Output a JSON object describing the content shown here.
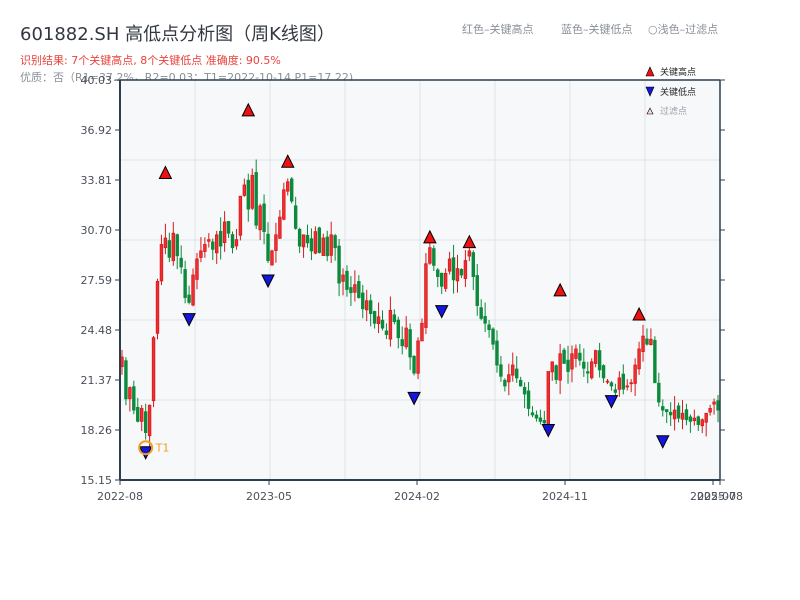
{
  "header": {
    "title": "601882.SH 高低点分析图（周K线图）",
    "result_line": "识别结果: 7个关键高点, 8个关键低点  准确度: 90.5%",
    "quality_line": "优质：否（R1=37.2%，R2=0.03；T1=2022-10-14 P1=17.22)"
  },
  "top_legend": {
    "red": "红色–关键高点",
    "blue": "蓝色–关键低点",
    "light": "○浅色–过滤点"
  },
  "colors": {
    "up": "#d7191c",
    "down": "#0a8a3a",
    "high_marker": "#ee1111",
    "low_marker": "#1515dd",
    "t1_marker": "#f0a020",
    "plot_bg": "#f6f8fa",
    "grid": "#dfe3e8",
    "axis": "#2c3e50"
  },
  "chart_data": {
    "type": "candlestick",
    "title": "601882.SH 高低点分析图（周K线图）",
    "xlabel": "",
    "ylabel": "",
    "ylim": [
      15.15,
      40.03
    ],
    "yticks": [
      "40.03",
      "36.92",
      "33.81",
      "30.70",
      "27.59",
      "24.48",
      "21.37",
      "18.26",
      "15.15"
    ],
    "xticks": [
      "2022-08",
      "2023-05",
      "2024-02",
      "2024-11",
      "2025-07",
      "2025-08"
    ],
    "grid": true,
    "legend": {
      "position": "upper right",
      "entries": [
        "关键高点",
        "关键低点",
        "过滤点"
      ]
    },
    "annotations": [
      {
        "label": "T1",
        "date": "2022-10-14",
        "price": 17.22
      }
    ],
    "key_highs": [
      {
        "week": 11,
        "price": 33.9
      },
      {
        "week": 32,
        "price": 37.8
      },
      {
        "week": 42,
        "price": 34.6
      },
      {
        "week": 78,
        "price": 29.9
      },
      {
        "week": 88,
        "price": 29.6
      },
      {
        "week": 111,
        "price": 26.6
      },
      {
        "week": 131,
        "price": 25.1
      }
    ],
    "key_lows": [
      {
        "week": 6,
        "price": 17.22
      },
      {
        "week": 17,
        "price": 25.5
      },
      {
        "week": 37,
        "price": 27.9
      },
      {
        "week": 74,
        "price": 20.6
      },
      {
        "week": 81,
        "price": 26.0
      },
      {
        "week": 108,
        "price": 18.6
      },
      {
        "week": 124,
        "price": 20.4
      },
      {
        "week": 137,
        "price": 17.9
      }
    ],
    "weekly_closes": [
      22.8,
      20.2,
      20.9,
      19.5,
      18.8,
      19.6,
      18.1,
      19.8,
      24.0,
      27.5,
      29.8,
      30.2,
      29.0,
      30.5,
      29.1,
      28.4,
      26.5,
      26.2,
      27.9,
      28.9,
      29.4,
      29.8,
      30.1,
      29.5,
      30.4,
      29.7,
      31.2,
      30.5,
      29.6,
      30.1,
      32.8,
      33.5,
      32.0,
      34.1,
      31.0,
      32.2,
      30.6,
      28.8,
      29.4,
      30.4,
      31.5,
      33.2,
      33.7,
      32.5,
      30.8,
      29.7,
      30.4,
      29.9,
      29.4,
      30.6,
      29.3,
      30.2,
      29.1,
      30.4,
      29.6,
      27.4,
      27.9,
      27.0,
      26.8,
      27.3,
      26.5,
      25.8,
      26.3,
      25.5,
      24.9,
      25.3,
      24.6,
      24.2,
      25.7,
      25.0,
      24.0,
      23.5,
      24.6,
      22.8,
      21.8,
      23.8,
      24.9,
      28.6,
      29.6,
      28.5,
      27.8,
      27.2,
      28.0,
      28.9,
      27.6,
      28.3,
      27.9,
      28.8,
      29.4,
      27.8,
      26.0,
      25.2,
      24.9,
      24.5,
      23.6,
      22.3,
      21.6,
      21.0,
      21.7,
      22.3,
      21.5,
      21.0,
      20.5,
      19.6,
      19.2,
      19.0,
      18.8,
      18.7,
      21.9,
      22.5,
      21.4,
      23.0,
      22.4,
      21.9,
      23.0,
      23.3,
      22.6,
      22.1,
      21.8,
      22.5,
      23.2,
      22.0,
      21.5,
      21.3,
      21.0,
      20.6,
      21.5,
      20.8,
      21.0,
      21.2,
      22.3,
      23.3,
      24.1,
      23.6,
      23.9,
      21.2,
      20.0,
      19.5,
      19.4,
      19.2,
      19.5,
      19.0,
      19.3,
      18.9,
      18.8,
      19.0,
      18.6,
      18.9,
      19.3,
      19.6,
      20.0,
      19.5
    ]
  }
}
